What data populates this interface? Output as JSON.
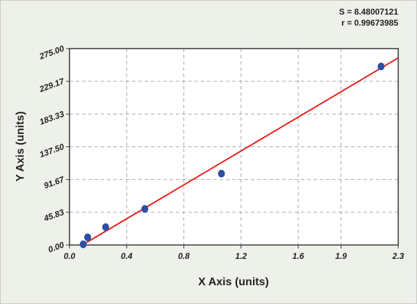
{
  "chart_data": {
    "type": "scatter",
    "annotations": [
      "S = 8.48007121",
      "r = 0.99673985"
    ],
    "xlabel": "X Axis (units)",
    "ylabel": "Y Axis (units)",
    "xlim": [
      0,
      2.3
    ],
    "ylim": [
      0,
      275
    ],
    "xticks": [
      {
        "value": 0,
        "label": "0.0"
      },
      0.4,
      0.8,
      1.2,
      1.6,
      1.9,
      2.3
    ],
    "yticks": [
      {
        "value": 0,
        "label": "0.00"
      },
      45.83,
      91.67,
      {
        "value": 137.5,
        "label": "137.50"
      },
      183.33,
      229.17,
      {
        "value": 275,
        "label": "275.00"
      }
    ],
    "grid": true,
    "series": [
      {
        "type": "line",
        "color": "#e8201c",
        "x": [
          0.09,
          2.3
        ],
        "values": [
          0,
          262
        ]
      },
      {
        "type": "scatter",
        "color": "#2e4ea3",
        "x": [
          0.096,
          0.127,
          0.253,
          0.527,
          1.063,
          2.18
        ],
        "values": [
          1,
          10.7,
          25,
          50.5,
          100,
          250
        ]
      }
    ]
  }
}
